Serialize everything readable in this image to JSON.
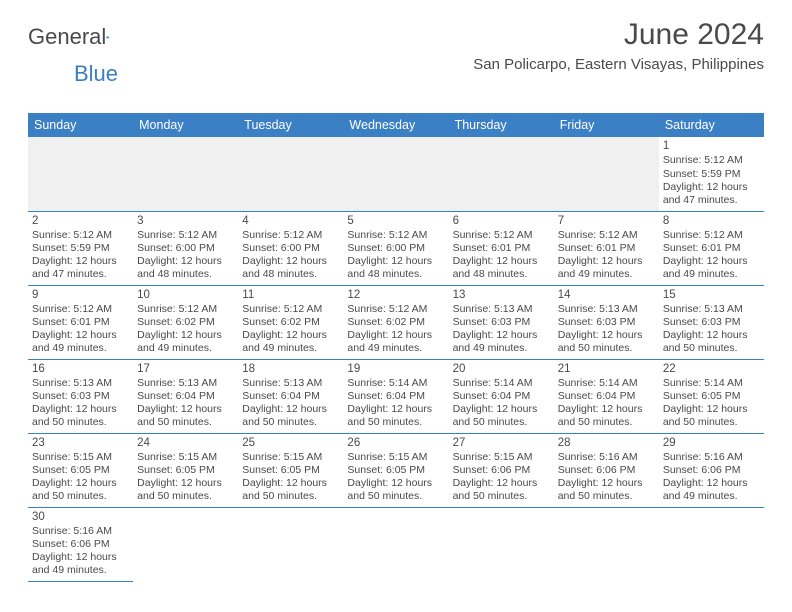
{
  "logo": {
    "text1": "General",
    "text2": "Blue"
  },
  "title": "June 2024",
  "location": "San Policarpo, Eastern Visayas, Philippines",
  "dayHeaders": [
    "Sunday",
    "Monday",
    "Tuesday",
    "Wednesday",
    "Thursday",
    "Friday",
    "Saturday"
  ],
  "colors": {
    "headerBg": "#3b7fc4",
    "headerText": "#ffffff",
    "bodyText": "#4a4a4a",
    "ruleLine": "#3b7fc4",
    "blankBg": "#f0f0f0"
  },
  "typography": {
    "titleFontSize": 30,
    "locationFontSize": 15,
    "dayHeaderFontSize": 12.5,
    "cellFontSize": 10.5
  },
  "weeks": [
    [
      null,
      null,
      null,
      null,
      null,
      null,
      {
        "n": "1",
        "sr": "Sunrise: 5:12 AM",
        "ss": "Sunset: 5:59 PM",
        "d1": "Daylight: 12 hours",
        "d2": "and 47 minutes."
      }
    ],
    [
      {
        "n": "2",
        "sr": "Sunrise: 5:12 AM",
        "ss": "Sunset: 5:59 PM",
        "d1": "Daylight: 12 hours",
        "d2": "and 47 minutes."
      },
      {
        "n": "3",
        "sr": "Sunrise: 5:12 AM",
        "ss": "Sunset: 6:00 PM",
        "d1": "Daylight: 12 hours",
        "d2": "and 48 minutes."
      },
      {
        "n": "4",
        "sr": "Sunrise: 5:12 AM",
        "ss": "Sunset: 6:00 PM",
        "d1": "Daylight: 12 hours",
        "d2": "and 48 minutes."
      },
      {
        "n": "5",
        "sr": "Sunrise: 5:12 AM",
        "ss": "Sunset: 6:00 PM",
        "d1": "Daylight: 12 hours",
        "d2": "and 48 minutes."
      },
      {
        "n": "6",
        "sr": "Sunrise: 5:12 AM",
        "ss": "Sunset: 6:01 PM",
        "d1": "Daylight: 12 hours",
        "d2": "and 48 minutes."
      },
      {
        "n": "7",
        "sr": "Sunrise: 5:12 AM",
        "ss": "Sunset: 6:01 PM",
        "d1": "Daylight: 12 hours",
        "d2": "and 49 minutes."
      },
      {
        "n": "8",
        "sr": "Sunrise: 5:12 AM",
        "ss": "Sunset: 6:01 PM",
        "d1": "Daylight: 12 hours",
        "d2": "and 49 minutes."
      }
    ],
    [
      {
        "n": "9",
        "sr": "Sunrise: 5:12 AM",
        "ss": "Sunset: 6:01 PM",
        "d1": "Daylight: 12 hours",
        "d2": "and 49 minutes."
      },
      {
        "n": "10",
        "sr": "Sunrise: 5:12 AM",
        "ss": "Sunset: 6:02 PM",
        "d1": "Daylight: 12 hours",
        "d2": "and 49 minutes."
      },
      {
        "n": "11",
        "sr": "Sunrise: 5:12 AM",
        "ss": "Sunset: 6:02 PM",
        "d1": "Daylight: 12 hours",
        "d2": "and 49 minutes."
      },
      {
        "n": "12",
        "sr": "Sunrise: 5:12 AM",
        "ss": "Sunset: 6:02 PM",
        "d1": "Daylight: 12 hours",
        "d2": "and 49 minutes."
      },
      {
        "n": "13",
        "sr": "Sunrise: 5:13 AM",
        "ss": "Sunset: 6:03 PM",
        "d1": "Daylight: 12 hours",
        "d2": "and 49 minutes."
      },
      {
        "n": "14",
        "sr": "Sunrise: 5:13 AM",
        "ss": "Sunset: 6:03 PM",
        "d1": "Daylight: 12 hours",
        "d2": "and 50 minutes."
      },
      {
        "n": "15",
        "sr": "Sunrise: 5:13 AM",
        "ss": "Sunset: 6:03 PM",
        "d1": "Daylight: 12 hours",
        "d2": "and 50 minutes."
      }
    ],
    [
      {
        "n": "16",
        "sr": "Sunrise: 5:13 AM",
        "ss": "Sunset: 6:03 PM",
        "d1": "Daylight: 12 hours",
        "d2": "and 50 minutes."
      },
      {
        "n": "17",
        "sr": "Sunrise: 5:13 AM",
        "ss": "Sunset: 6:04 PM",
        "d1": "Daylight: 12 hours",
        "d2": "and 50 minutes."
      },
      {
        "n": "18",
        "sr": "Sunrise: 5:13 AM",
        "ss": "Sunset: 6:04 PM",
        "d1": "Daylight: 12 hours",
        "d2": "and 50 minutes."
      },
      {
        "n": "19",
        "sr": "Sunrise: 5:14 AM",
        "ss": "Sunset: 6:04 PM",
        "d1": "Daylight: 12 hours",
        "d2": "and 50 minutes."
      },
      {
        "n": "20",
        "sr": "Sunrise: 5:14 AM",
        "ss": "Sunset: 6:04 PM",
        "d1": "Daylight: 12 hours",
        "d2": "and 50 minutes."
      },
      {
        "n": "21",
        "sr": "Sunrise: 5:14 AM",
        "ss": "Sunset: 6:04 PM",
        "d1": "Daylight: 12 hours",
        "d2": "and 50 minutes."
      },
      {
        "n": "22",
        "sr": "Sunrise: 5:14 AM",
        "ss": "Sunset: 6:05 PM",
        "d1": "Daylight: 12 hours",
        "d2": "and 50 minutes."
      }
    ],
    [
      {
        "n": "23",
        "sr": "Sunrise: 5:15 AM",
        "ss": "Sunset: 6:05 PM",
        "d1": "Daylight: 12 hours",
        "d2": "and 50 minutes."
      },
      {
        "n": "24",
        "sr": "Sunrise: 5:15 AM",
        "ss": "Sunset: 6:05 PM",
        "d1": "Daylight: 12 hours",
        "d2": "and 50 minutes."
      },
      {
        "n": "25",
        "sr": "Sunrise: 5:15 AM",
        "ss": "Sunset: 6:05 PM",
        "d1": "Daylight: 12 hours",
        "d2": "and 50 minutes."
      },
      {
        "n": "26",
        "sr": "Sunrise: 5:15 AM",
        "ss": "Sunset: 6:05 PM",
        "d1": "Daylight: 12 hours",
        "d2": "and 50 minutes."
      },
      {
        "n": "27",
        "sr": "Sunrise: 5:15 AM",
        "ss": "Sunset: 6:06 PM",
        "d1": "Daylight: 12 hours",
        "d2": "and 50 minutes."
      },
      {
        "n": "28",
        "sr": "Sunrise: 5:16 AM",
        "ss": "Sunset: 6:06 PM",
        "d1": "Daylight: 12 hours",
        "d2": "and 50 minutes."
      },
      {
        "n": "29",
        "sr": "Sunrise: 5:16 AM",
        "ss": "Sunset: 6:06 PM",
        "d1": "Daylight: 12 hours",
        "d2": "and 49 minutes."
      }
    ],
    [
      {
        "n": "30",
        "sr": "Sunrise: 5:16 AM",
        "ss": "Sunset: 6:06 PM",
        "d1": "Daylight: 12 hours",
        "d2": "and 49 minutes."
      },
      null,
      null,
      null,
      null,
      null,
      null
    ]
  ]
}
